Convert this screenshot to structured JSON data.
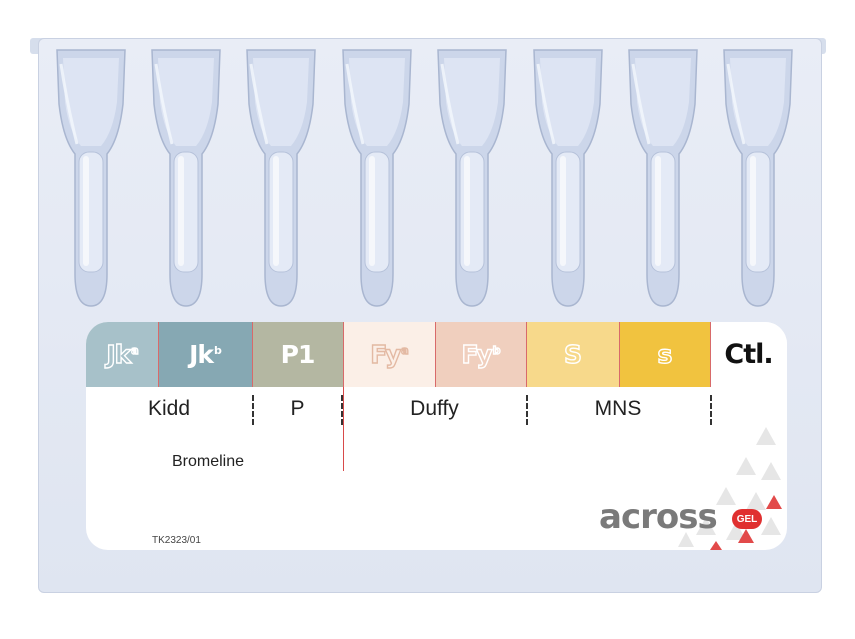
{
  "bands": [
    {
      "main": "Jk",
      "sup": "a",
      "color": "#a7c1c9"
    },
    {
      "main": "Jk",
      "sup": "b",
      "color": "#86a8b3"
    },
    {
      "main": "P1",
      "sup": "",
      "color": "#b4b7a2"
    },
    {
      "main": "Fy",
      "sup": "a",
      "color": "#fbefe7"
    },
    {
      "main": "Fy",
      "sup": "b",
      "color": "#f0cfbe"
    },
    {
      "main": "S",
      "sup": "",
      "color": "#f7d98b"
    },
    {
      "main": "s",
      "sup": "",
      "color": "#f1c33f"
    },
    {
      "main": "Ctl.",
      "sup": "",
      "color": "#ffffff"
    }
  ],
  "groups": {
    "kidd": "Kidd",
    "p": "P",
    "duffy": "Duffy",
    "mns": "MNS"
  },
  "medium": "Bromeline",
  "code": "TK2323/01",
  "logo": {
    "text": "across",
    "badge": "GEL"
  }
}
